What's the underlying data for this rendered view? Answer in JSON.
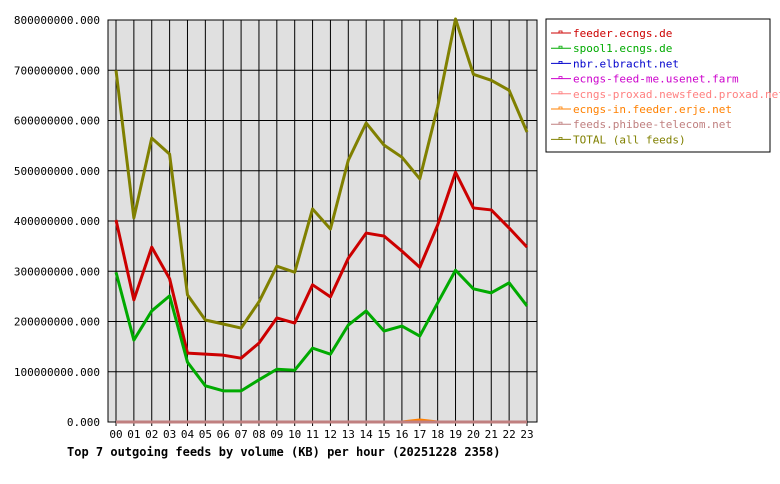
{
  "chart_data": {
    "type": "line",
    "title": "Top 7 outgoing feeds by volume (KB) per hour (20251228 2358)",
    "categories": [
      "00",
      "01",
      "02",
      "03",
      "04",
      "05",
      "06",
      "07",
      "08",
      "09",
      "10",
      "11",
      "12",
      "13",
      "14",
      "15",
      "16",
      "17",
      "18",
      "19",
      "20",
      "21",
      "22",
      "23"
    ],
    "ylim": [
      0,
      800000000
    ],
    "yticks": [
      "0.000",
      "100000000.000",
      "200000000.000",
      "300000000.000",
      "400000000.000",
      "500000000.000",
      "600000000.000",
      "700000000.000",
      "800000000.000"
    ],
    "grid": true,
    "legend_position": "right",
    "series": [
      {
        "name": "feeder.ecngs.de",
        "color": "#cc0000",
        "values": [
          402000000,
          243000000,
          348000000,
          285000000,
          137000000,
          135000000,
          133000000,
          127000000,
          157000000,
          207000000,
          197000000,
          273000000,
          249000000,
          326000000,
          376000000,
          370000000,
          340000000,
          308000000,
          392000000,
          497000000,
          426000000,
          422000000,
          386000000,
          348000000
        ]
      },
      {
        "name": "spool1.ecngs.de",
        "color": "#00aa00",
        "values": [
          298000000,
          163000000,
          221000000,
          251000000,
          119000000,
          72000000,
          62000000,
          62000000,
          84000000,
          105000000,
          103000000,
          147000000,
          135000000,
          193000000,
          221000000,
          181000000,
          191000000,
          171000000,
          237000000,
          302000000,
          265000000,
          257000000,
          277000000,
          231000000
        ]
      },
      {
        "name": "nbr.elbracht.net",
        "color": "#0000cc",
        "values": [
          0,
          0,
          0,
          0,
          0,
          0,
          0,
          0,
          0,
          0,
          0,
          0,
          0,
          0,
          0,
          0,
          0,
          0,
          0,
          0,
          0,
          0,
          0,
          0
        ]
      },
      {
        "name": "ecngs-feed-me.usenet.farm",
        "color": "#cc00cc",
        "values": [
          0,
          0,
          0,
          0,
          0,
          0,
          0,
          0,
          0,
          0,
          0,
          0,
          0,
          0,
          0,
          0,
          0,
          0,
          0,
          0,
          0,
          0,
          0,
          0
        ]
      },
      {
        "name": "ecngs-proxad.newsfeed.proxad.net",
        "color": "#ff8080",
        "values": [
          0,
          0,
          0,
          0,
          0,
          0,
          0,
          0,
          0,
          0,
          0,
          0,
          0,
          0,
          0,
          0,
          0,
          0,
          0,
          0,
          0,
          0,
          0,
          0
        ]
      },
      {
        "name": "ecngs-in.feeder.erje.net",
        "color": "#ff8000",
        "values": [
          0,
          0,
          0,
          0,
          0,
          0,
          0,
          0,
          0,
          0,
          0,
          0,
          0,
          0,
          0,
          0,
          0,
          4000000,
          0,
          0,
          0,
          0,
          0,
          0
        ]
      },
      {
        "name": "feeds.phibee-telecom.net",
        "color": "#c08080",
        "values": [
          0,
          0,
          0,
          0,
          0,
          0,
          0,
          0,
          0,
          0,
          0,
          0,
          0,
          0,
          0,
          0,
          0,
          0,
          0,
          0,
          0,
          0,
          0,
          0
        ]
      },
      {
        "name": "TOTAL (all feeds)",
        "color": "#808000",
        "values": [
          700000000,
          406000000,
          565000000,
          533000000,
          253000000,
          203000000,
          195000000,
          187000000,
          239000000,
          310000000,
          298000000,
          424000000,
          384000000,
          521000000,
          595000000,
          551000000,
          527000000,
          484000000,
          627000000,
          802000000,
          692000000,
          680000000,
          660000000,
          577000000
        ]
      }
    ]
  }
}
